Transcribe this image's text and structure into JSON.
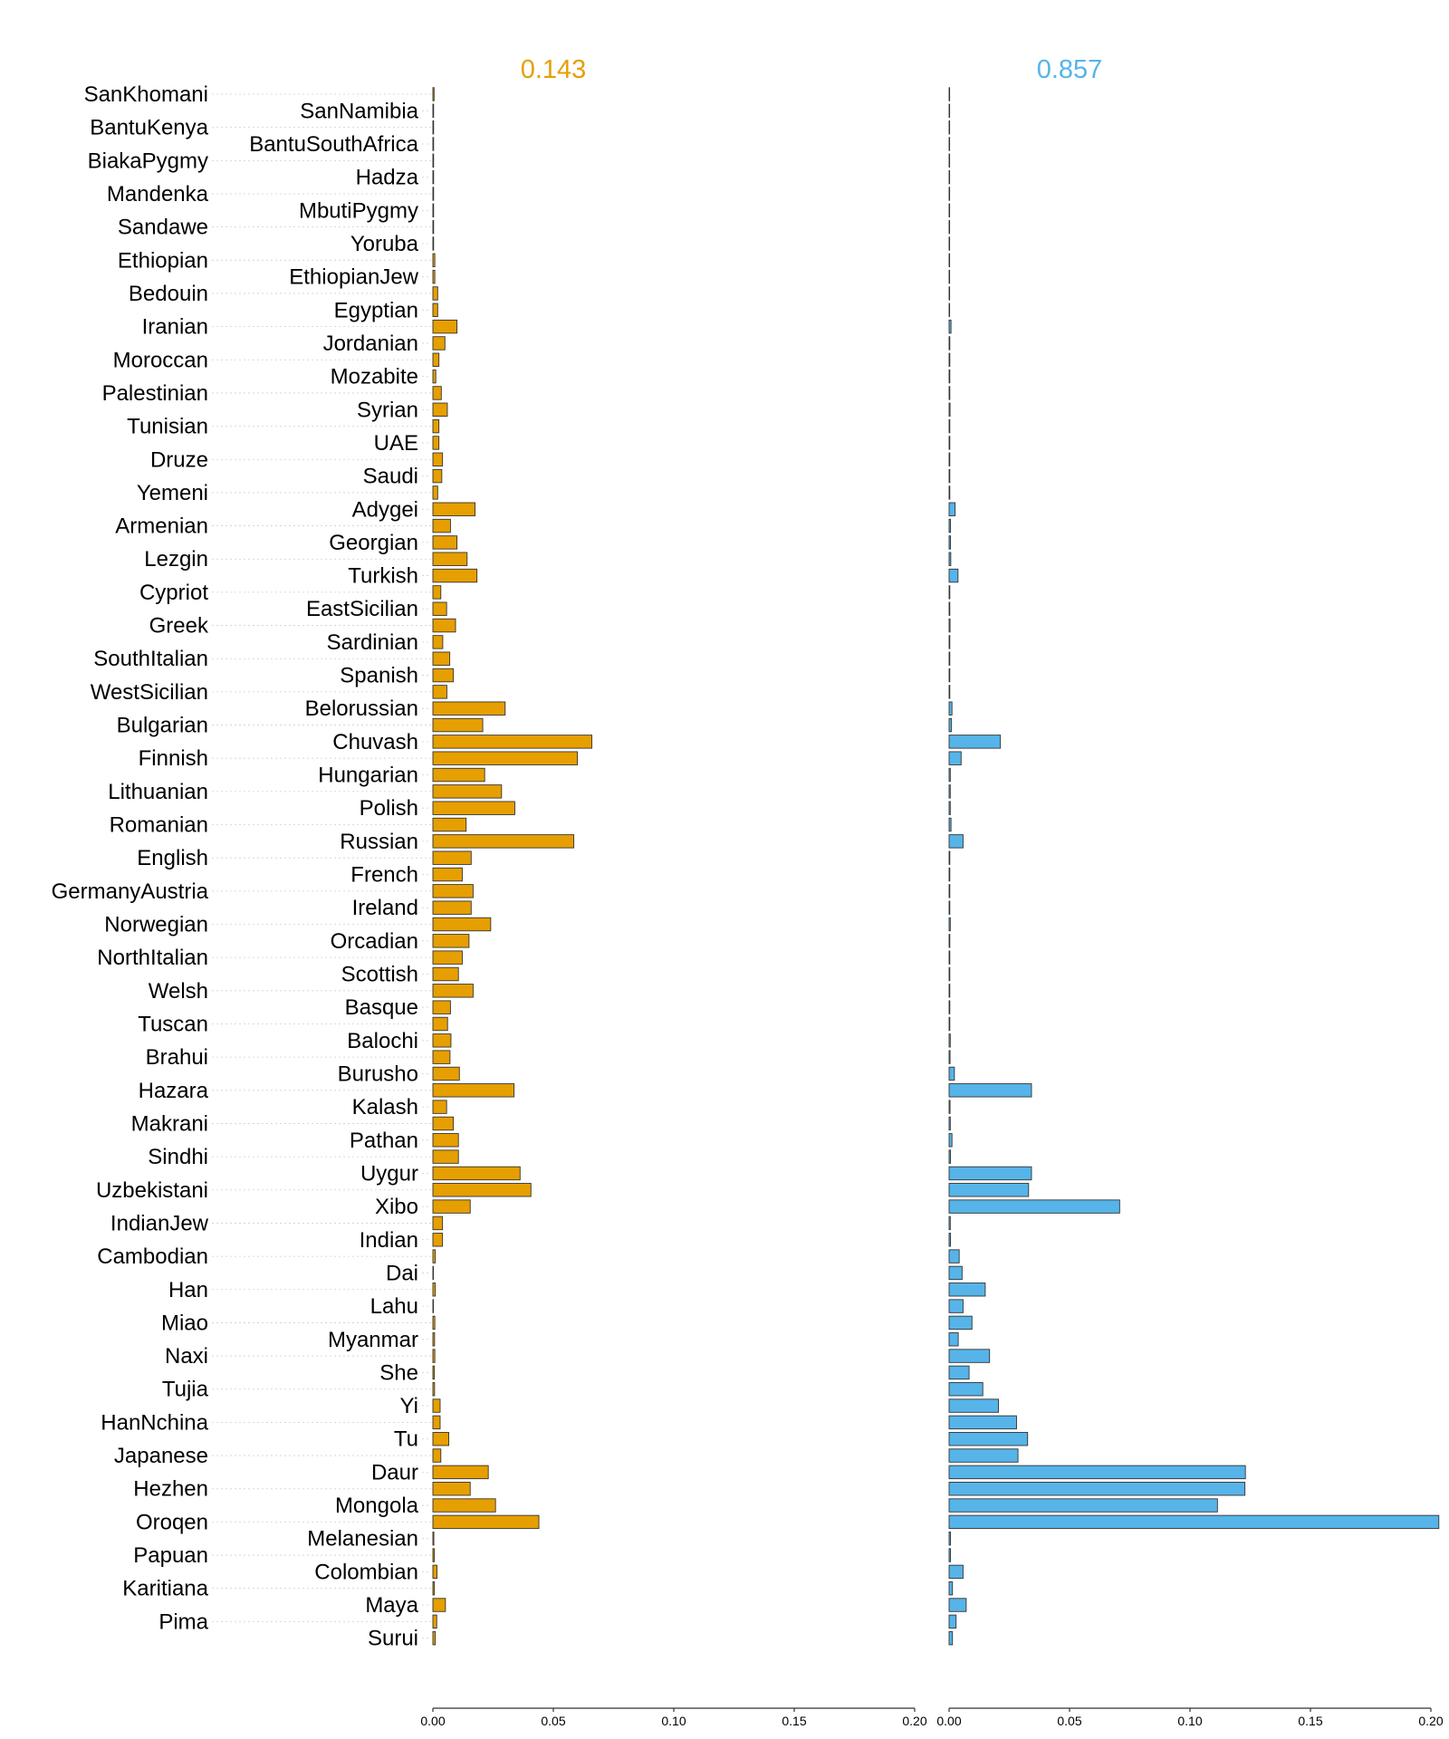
{
  "chart_data": {
    "type": "bar",
    "orientation": "horizontal",
    "categories": [
      "SanKhomani",
      "SanNamibia",
      "BantuKenya",
      "BantuSouthAfrica",
      "BiakaPygmy",
      "Hadza",
      "Mandenka",
      "MbutiPygmy",
      "Sandawe",
      "Yoruba",
      "Ethiopian",
      "EthiopianJew",
      "Bedouin",
      "Egyptian",
      "Iranian",
      "Jordanian",
      "Moroccan",
      "Mozabite",
      "Palestinian",
      "Syrian",
      "Tunisian",
      "UAE",
      "Druze",
      "Saudi",
      "Yemeni",
      "Adygei",
      "Armenian",
      "Georgian",
      "Lezgin",
      "Turkish",
      "Cypriot",
      "EastSicilian",
      "Greek",
      "Sardinian",
      "SouthItalian",
      "Spanish",
      "WestSicilian",
      "Belorussian",
      "Bulgarian",
      "Chuvash",
      "Finnish",
      "Hungarian",
      "Lithuanian",
      "Polish",
      "Romanian",
      "Russian",
      "English",
      "French",
      "GermanyAustria",
      "Ireland",
      "Norwegian",
      "Orcadian",
      "NorthItalian",
      "Scottish",
      "Welsh",
      "Basque",
      "Tuscan",
      "Balochi",
      "Brahui",
      "Burusho",
      "Hazara",
      "Kalash",
      "Makrani",
      "Pathan",
      "Sindhi",
      "Uygur",
      "Uzbekistani",
      "Xibo",
      "IndianJew",
      "Indian",
      "Cambodian",
      "Dai",
      "Han",
      "Lahu",
      "Miao",
      "Myanmar",
      "Naxi",
      "She",
      "Tujia",
      "Yi",
      "HanNchina",
      "Tu",
      "Japanese",
      "Daur",
      "Hezhen",
      "Mongola",
      "Oroqen",
      "Melanesian",
      "Papuan",
      "Colombian",
      "Karitiana",
      "Maya",
      "Pima",
      "Surui"
    ],
    "series": [
      {
        "name": "0.143",
        "color": "#E69F00",
        "values": [
          0.0005,
          0.0003,
          0.0003,
          0.0003,
          0.0003,
          0.0003,
          0.0003,
          0.0003,
          0.0003,
          0.0003,
          0.0008,
          0.0008,
          0.002,
          0.002,
          0.01,
          0.005,
          0.0025,
          0.0012,
          0.0035,
          0.006,
          0.0025,
          0.0025,
          0.004,
          0.0037,
          0.002,
          0.0175,
          0.0073,
          0.01,
          0.0142,
          0.0183,
          0.0033,
          0.0057,
          0.0094,
          0.0041,
          0.007,
          0.0085,
          0.0058,
          0.03,
          0.0207,
          0.066,
          0.06,
          0.0215,
          0.0285,
          0.034,
          0.0138,
          0.0585,
          0.0159,
          0.0122,
          0.0167,
          0.0159,
          0.024,
          0.015,
          0.0122,
          0.0106,
          0.0167,
          0.0073,
          0.0061,
          0.0075,
          0.0071,
          0.011,
          0.0337,
          0.0057,
          0.0085,
          0.0106,
          0.0106,
          0.0362,
          0.0407,
          0.0155,
          0.004,
          0.004,
          0.001,
          0.0002,
          0.001,
          0.0002,
          0.0008,
          0.0007,
          0.0008,
          0.0006,
          0.0007,
          0.003,
          0.003,
          0.0066,
          0.0033,
          0.023,
          0.0155,
          0.026,
          0.044,
          0.0004,
          0.0006,
          0.0017,
          0.0006,
          0.0052,
          0.0016,
          0.001
        ]
      },
      {
        "name": "0.857",
        "color": "#56B4E9",
        "values": [
          0.0002,
          0.0002,
          0.0002,
          0.0002,
          0.0002,
          0.0002,
          0.0002,
          0.0002,
          0.0002,
          0.0002,
          0.0002,
          0.0002,
          0.0002,
          0.0002,
          0.0008,
          0.0003,
          0.0003,
          0.0003,
          0.0003,
          0.0004,
          0.0003,
          0.0003,
          0.0003,
          0.0003,
          0.0003,
          0.0025,
          0.0006,
          0.0006,
          0.0007,
          0.0037,
          0.0003,
          0.0003,
          0.0004,
          0.0003,
          0.0003,
          0.0003,
          0.0003,
          0.0012,
          0.001,
          0.0213,
          0.005,
          0.0005,
          0.0005,
          0.0005,
          0.0008,
          0.0058,
          0.0003,
          0.0003,
          0.0003,
          0.0003,
          0.0005,
          0.0003,
          0.0003,
          0.0003,
          0.0003,
          0.0003,
          0.0003,
          0.0005,
          0.0004,
          0.0022,
          0.0342,
          0.0004,
          0.0005,
          0.0012,
          0.0006,
          0.0342,
          0.033,
          0.0708,
          0.0005,
          0.0006,
          0.0042,
          0.0054,
          0.015,
          0.0058,
          0.0095,
          0.0038,
          0.0168,
          0.0083,
          0.014,
          0.0205,
          0.028,
          0.0326,
          0.0286,
          0.123,
          0.1228,
          0.1114,
          0.2033,
          0.0006,
          0.0006,
          0.0058,
          0.0014,
          0.0071,
          0.0029,
          0.0014
        ]
      }
    ],
    "panel_titles": [
      "0.143",
      "0.857"
    ],
    "xlim": [
      0,
      0.2
    ],
    "xticks": [
      "0.00",
      "0.05",
      "0.10",
      "0.15",
      "0.20"
    ],
    "xlabel": "",
    "ylabel": "",
    "grid": false,
    "legend": "none"
  }
}
